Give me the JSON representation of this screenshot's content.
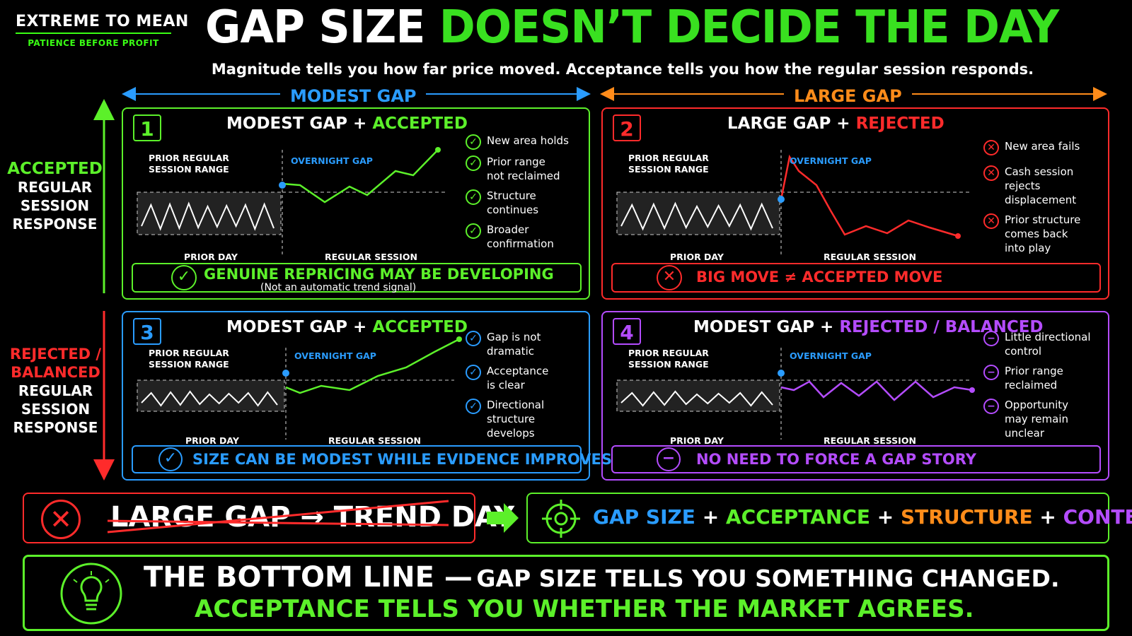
{
  "brand": {
    "name": "EXTREME TO MEAN",
    "tagline": "PATIENCE BEFORE PROFIT"
  },
  "title": {
    "part1": "GAP SIZE",
    "part2": "DOESN’T DECIDE THE DAY"
  },
  "subtitle": "Magnitude tells you how far price moved. Acceptance tells you how the regular session responds.",
  "columns": {
    "left": "MODEST GAP",
    "right": "LARGE GAP"
  },
  "rows": {
    "top": {
      "label1": "ACCEPTED",
      "label2": "REGULAR",
      "label3": "SESSION",
      "label4": "RESPONSE"
    },
    "bottom": {
      "label1": "REJECTED /",
      "label2": "BALANCED",
      "label3": "REGULAR",
      "label4": "SESSION",
      "label5": "RESPONSE"
    }
  },
  "panels": [
    {
      "num": "1",
      "title_a": "MODEST GAP +",
      "title_b": "ACCEPTED",
      "color": "#5cf02a",
      "prior_range": "PRIOR REGULAR\nSESSION RANGE",
      "overnight": "OVERNIGHT GAP",
      "prior_day": "PRIOR DAY",
      "regular": "REGULAR SESSION",
      "icon": "check-icon",
      "items": [
        "New area holds",
        "Prior range\nnot reclaimed",
        "Structure\ncontinues",
        "Broader\nconfirmation"
      ],
      "banner": "GENUINE REPRICING MAY BE DEVELOPING",
      "banner_sub": "(Not an automatic trend signal)"
    },
    {
      "num": "2",
      "title_a": "LARGE GAP +",
      "title_b": "REJECTED",
      "color": "#ff2b2b",
      "prior_range": "PRIOR REGULAR\nSESSION RANGE",
      "overnight": "OVERNIGHT GAP",
      "prior_day": "PRIOR DAY",
      "regular": "REGULAR SESSION",
      "icon": "x-icon",
      "items": [
        "New area fails",
        "Cash session\nrejects\ndisplacement",
        "Prior structure\ncomes back\ninto play"
      ],
      "banner": "BIG MOVE ≠ ACCEPTED MOVE",
      "banner_sub": ""
    },
    {
      "num": "3",
      "title_a": "MODEST GAP +",
      "title_b": "ACCEPTED",
      "color": "#2a9cff",
      "prior_range": "PRIOR REGULAR\nSESSION RANGE",
      "overnight": "OVERNIGHT GAP",
      "prior_day": "PRIOR DAY",
      "regular": "REGULAR SESSION",
      "icon": "check-icon",
      "items": [
        "Gap is not\ndramatic",
        "Acceptance\nis clear",
        "Directional\nstructure\ndevelops"
      ],
      "banner": "SIZE CAN BE MODEST WHILE EVIDENCE IMPROVES",
      "banner_sub": ""
    },
    {
      "num": "4",
      "title_a": "MODEST GAP +",
      "title_b": "REJECTED / BALANCED",
      "color": "#b44cff",
      "prior_range": "PRIOR REGULAR\nSESSION RANGE",
      "overnight": "OVERNIGHT GAP",
      "prior_day": "PRIOR DAY",
      "regular": "REGULAR SESSION",
      "icon": "minus-icon",
      "items": [
        "Little directional\ncontrol",
        "Prior range\nreclaimed",
        "Opportunity\nmay remain\nunclear"
      ],
      "banner": "NO NEED TO FORCE A GAP STORY",
      "banner_sub": ""
    }
  ],
  "myth": {
    "text": "LARGE GAP → TREND DAY",
    "icon": "x-icon"
  },
  "formula": {
    "a": "GAP SIZE",
    "b": "ACCEPTANCE",
    "c": "STRUCTURE",
    "d": "CONTEXT",
    "plus": "+",
    "icon": "crosshair-icon"
  },
  "bottom": {
    "lead": "THE BOTTOM LINE —",
    "line1": "GAP SIZE TELLS YOU SOMETHING CHANGED.",
    "line2": "ACCEPTANCE TELLS YOU WHETHER THE MARKET AGREES.",
    "icon": "lightbulb-icon"
  },
  "colors": {
    "green": "#5cf02a",
    "red": "#ff2b2b",
    "blue": "#2a9cff",
    "purple": "#b44cff",
    "orange": "#ff8c1a"
  }
}
